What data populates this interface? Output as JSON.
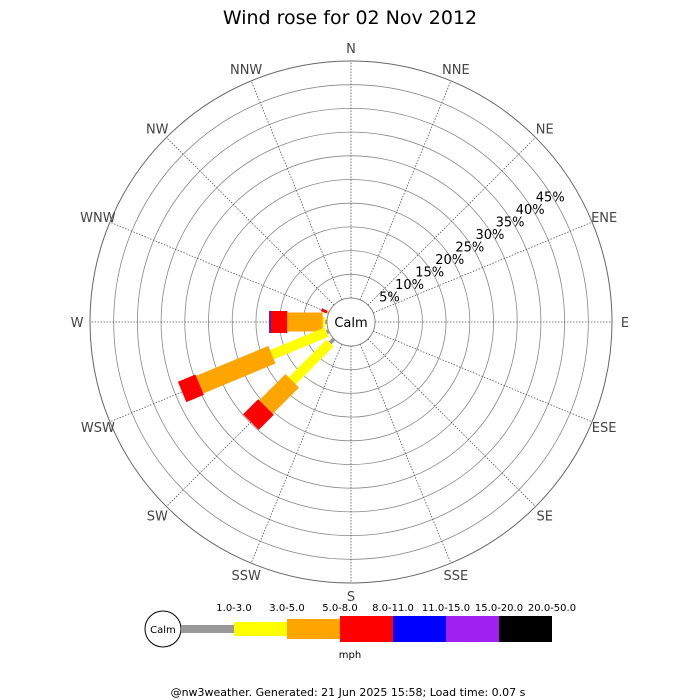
{
  "chart_data": {
    "type": "windrose",
    "title": "Wind rose for 02 Nov 2012",
    "directions": [
      "N",
      "NNE",
      "NE",
      "ENE",
      "E",
      "ESE",
      "SE",
      "SSE",
      "S",
      "SSW",
      "SW",
      "WSW",
      "W",
      "WNW",
      "NW",
      "NNW"
    ],
    "radial_ticks": [
      "5%",
      "10%",
      "15%",
      "20%",
      "25%",
      "30%",
      "35%",
      "40%",
      "45%"
    ],
    "rmax_percent": 50,
    "calm_label": "Calm",
    "speed_bins": [
      {
        "label": "1.0-3.0",
        "color": "#999999"
      },
      {
        "label": "3.0-5.0",
        "color": "#ffff00"
      },
      {
        "label": "5.0-8.0",
        "color": "#ffa500"
      },
      {
        "label": "8.0-11.0",
        "color": "#ff0000"
      },
      {
        "label": "11.0-15.0",
        "color": "#0000ff"
      },
      {
        "label": "15.0-20.0",
        "color": "#a020f0"
      },
      {
        "label": "20.0-50.0",
        "color": "#000000"
      }
    ],
    "unit": "mph",
    "series": [
      {
        "direction": "WNW",
        "values": [
          0.2,
          0.2,
          0.0,
          1.3,
          0.0,
          0.0,
          0.0
        ]
      },
      {
        "direction": "W",
        "values": [
          0.4,
          0.5,
          7.5,
          3.5,
          0.3,
          0.0,
          0.0
        ]
      },
      {
        "direction": "WSW",
        "values": [
          0.5,
          12.5,
          16.5,
          4.0,
          0.0,
          0.0,
          0.0
        ]
      },
      {
        "direction": "SW",
        "values": [
          1.2,
          11.3,
          7.8,
          4.5,
          0.0,
          0.0,
          0.0
        ]
      }
    ]
  },
  "footer": "@nw3weather. Generated: 21 Jun 2025 15:58; Load time: 0.07 s"
}
